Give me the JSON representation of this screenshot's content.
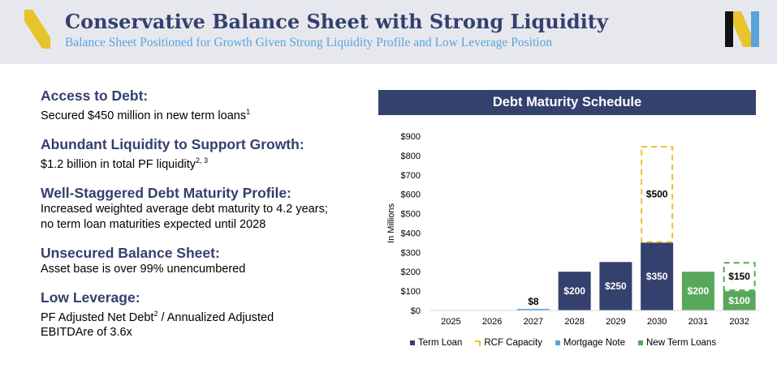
{
  "header": {
    "title": "Conservative Balance Sheet with Strong Liquidity",
    "subtitle": "Balance Sheet Positioned for Growth Given Strong Liquidity Profile and Low Leverage Position"
  },
  "highlights": [
    {
      "heading": "Access to Debt:",
      "lines": [
        "Secured $450 million in new term loans"
      ],
      "sups": [
        "1"
      ]
    },
    {
      "heading": "Abundant Liquidity to Support Growth:",
      "lines": [
        "$1.2 billion in total PF liquidity"
      ],
      "sups": [
        "2, 3"
      ]
    },
    {
      "heading": "Well-Staggered Debt Maturity Profile:",
      "lines": [
        "Increased weighted average debt maturity to 4.2 years;",
        "no term loan maturities expected until 2028"
      ],
      "sups": []
    },
    {
      "heading": "Unsecured Balance Sheet:",
      "lines": [
        "Asset base is over 99% unencumbered"
      ],
      "sups": []
    },
    {
      "heading": "Low Leverage:",
      "line1a": "PF Adjusted Net Debt",
      "line1sup": "2",
      "line1b": " / Annualized Adjusted",
      "line2": "EBITDAre of 3.6x"
    }
  ],
  "colors": {
    "navy": "#34406e",
    "gold": "#e8c42c",
    "light_blue": "#5aa4dc",
    "green": "#58a85b"
  },
  "chart_data": {
    "type": "bar",
    "stacked": true,
    "title": "Debt Maturity Schedule",
    "ylabel": "In Millions",
    "ylim": [
      0,
      900
    ],
    "yticks": [
      "$0",
      "$100",
      "$200",
      "$300",
      "$400",
      "$500",
      "$600",
      "$700",
      "$800",
      "$900"
    ],
    "categories": [
      "2025",
      "2026",
      "2027",
      "2028",
      "2029",
      "2030",
      "2031",
      "2032"
    ],
    "series": [
      {
        "name": "Term Loan",
        "color": "#34406e",
        "style": "solid",
        "values": [
          0,
          0,
          0,
          200,
          250,
          350,
          0,
          0
        ],
        "labels": [
          "",
          "",
          "",
          "$200",
          "$250",
          "$350",
          "",
          ""
        ]
      },
      {
        "name": "RCF Capacity",
        "color": "#e8c42c",
        "style": "dashed",
        "values": [
          0,
          0,
          0,
          0,
          0,
          500,
          0,
          0
        ],
        "labels": [
          "",
          "",
          "",
          "",
          "",
          "$500",
          "",
          ""
        ]
      },
      {
        "name": "Mortgage Note",
        "color": "#5aa4dc",
        "style": "solid",
        "values": [
          0,
          0,
          8,
          0,
          0,
          0,
          0,
          0
        ],
        "labels": [
          "",
          "",
          "$8",
          "",
          "",
          "",
          "",
          ""
        ]
      },
      {
        "name": "New Term Loans",
        "color": "#58a85b",
        "style": "solid",
        "values": [
          0,
          0,
          0,
          0,
          0,
          0,
          200,
          100
        ],
        "labels": [
          "",
          "",
          "",
          "",
          "",
          "",
          "$200",
          "$100"
        ]
      },
      {
        "name": "",
        "color": "#58a85b",
        "style": "dashed",
        "values": [
          0,
          0,
          0,
          0,
          0,
          0,
          0,
          150
        ],
        "labels": [
          "",
          "",
          "",
          "",
          "",
          "",
          "",
          "$150"
        ]
      }
    ],
    "legend_position": "bottom",
    "grid": false
  }
}
